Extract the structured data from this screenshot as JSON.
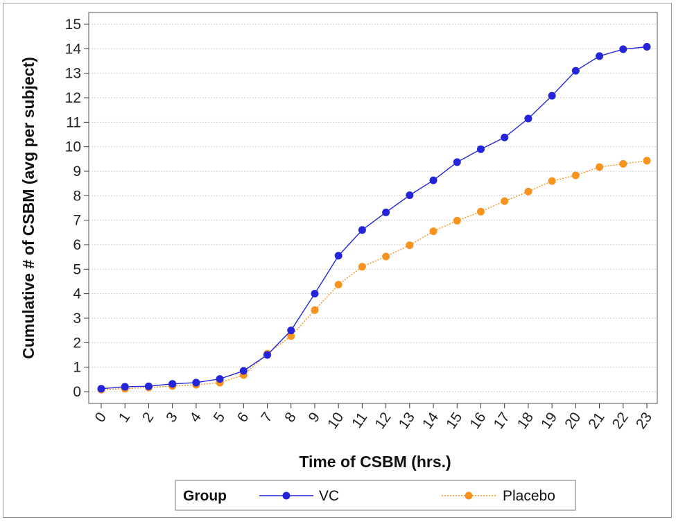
{
  "chart_data": {
    "type": "line",
    "xlabel": "Time of CSBM (hrs.)",
    "ylabel": "Cumulative # of CSBM (avg per subject)",
    "x": [
      0,
      1,
      2,
      3,
      4,
      5,
      6,
      7,
      8,
      9,
      10,
      11,
      12,
      13,
      14,
      15,
      16,
      17,
      18,
      19,
      20,
      21,
      22,
      23
    ],
    "xlim": [
      0,
      23
    ],
    "ylim": [
      0,
      15
    ],
    "xticks": [
      "0",
      "1",
      "2",
      "3",
      "4",
      "5",
      "6",
      "7",
      "8",
      "9",
      "10",
      "11",
      "12",
      "13",
      "14",
      "15",
      "16",
      "17",
      "18",
      "19",
      "20",
      "21",
      "22",
      "23"
    ],
    "yticks": [
      "0",
      "1",
      "2",
      "3",
      "4",
      "5",
      "6",
      "7",
      "8",
      "9",
      "10",
      "11",
      "12",
      "13",
      "14",
      "15"
    ],
    "grid": "horizontal",
    "legend": {
      "title": "Group",
      "placement": "bottom"
    },
    "series": [
      {
        "name": "VC",
        "color": "#2424d8",
        "line_style": "solid",
        "values": [
          0.12,
          0.2,
          0.22,
          0.32,
          0.37,
          0.52,
          0.85,
          1.5,
          2.5,
          4.0,
          5.55,
          6.6,
          7.32,
          8.02,
          8.63,
          9.37,
          9.9,
          10.38,
          11.15,
          12.08,
          13.1,
          13.7,
          13.98,
          14.08
        ]
      },
      {
        "name": "Placebo",
        "color": "#f7931e",
        "line_style": "dotted",
        "values": [
          0.08,
          0.12,
          0.17,
          0.23,
          0.28,
          0.37,
          0.68,
          1.55,
          2.27,
          3.33,
          4.37,
          5.1,
          5.52,
          5.98,
          6.55,
          6.98,
          7.35,
          7.78,
          8.17,
          8.6,
          8.83,
          9.17,
          9.3,
          9.43
        ]
      }
    ]
  }
}
